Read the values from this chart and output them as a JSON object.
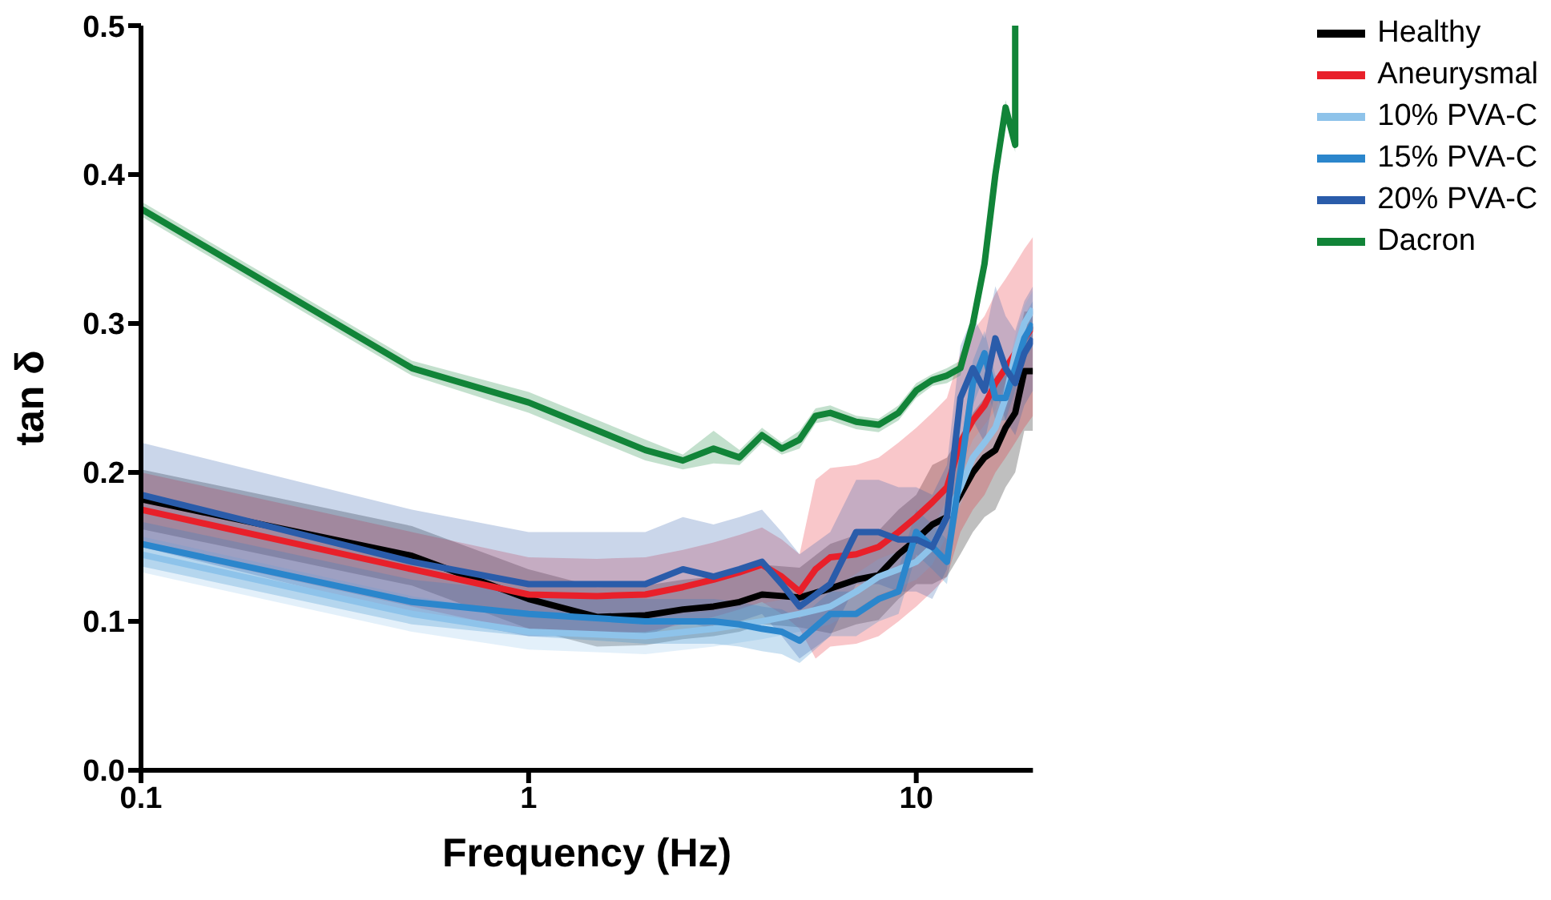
{
  "chart_data": {
    "type": "line",
    "xlabel": "Frequency (Hz)",
    "ylabel": "tan δ",
    "log": "x",
    "xlim": [
      0.1,
      20
    ],
    "xticks": [
      0.1,
      1,
      10
    ],
    "ylim": [
      0,
      0.5
    ],
    "yticks": [
      {
        "value": 0,
        "label": "0.0"
      },
      0.1,
      0.2,
      0.3,
      0.4,
      0.5
    ],
    "legend": "top right",
    "marker": "none",
    "series": [
      {
        "name": "Healthy",
        "color": "#000000",
        "x": [
          0.1,
          0.5,
          1,
          1.5,
          2,
          2.5,
          3,
          3.5,
          4,
          4.5,
          5,
          6,
          7,
          8,
          9,
          10,
          11,
          12,
          13,
          14,
          15,
          16,
          17,
          18,
          19,
          20
        ],
        "values": [
          0.182,
          0.144,
          0.115,
          0.103,
          0.104,
          0.108,
          0.11,
          0.113,
          0.118,
          0.117,
          0.116,
          0.122,
          0.128,
          0.131,
          0.145,
          0.155,
          0.165,
          0.17,
          0.185,
          0.2,
          0.21,
          0.215,
          0.23,
          0.24,
          0.268,
          0.268
        ],
        "lower": [
          0.162,
          0.124,
          0.095,
          0.083,
          0.084,
          0.088,
          0.09,
          0.093,
          0.098,
          0.097,
          0.096,
          0.092,
          0.098,
          0.101,
          0.115,
          0.125,
          0.125,
          0.13,
          0.145,
          0.16,
          0.17,
          0.175,
          0.19,
          0.2,
          0.228,
          0.228
        ],
        "upper": [
          0.202,
          0.164,
          0.135,
          0.123,
          0.124,
          0.128,
          0.13,
          0.133,
          0.138,
          0.137,
          0.136,
          0.152,
          0.158,
          0.161,
          0.175,
          0.185,
          0.205,
          0.21,
          0.225,
          0.24,
          0.25,
          0.255,
          0.27,
          0.28,
          0.308,
          0.308
        ]
      },
      {
        "name": "Aneurysmal",
        "color": "#e8202a",
        "x": [
          0.1,
          0.5,
          1,
          1.5,
          2,
          2.5,
          3,
          3.5,
          4,
          4.5,
          5,
          5.5,
          6,
          7,
          8,
          9,
          10,
          11,
          12,
          13,
          14,
          15,
          16,
          17,
          18,
          19,
          20
        ],
        "values": [
          0.175,
          0.135,
          0.118,
          0.117,
          0.118,
          0.123,
          0.128,
          0.133,
          0.138,
          0.13,
          0.12,
          0.135,
          0.143,
          0.145,
          0.15,
          0.16,
          0.17,
          0.18,
          0.19,
          0.22,
          0.235,
          0.245,
          0.26,
          0.27,
          0.28,
          0.29,
          0.298
        ],
        "lower": [
          0.15,
          0.11,
          0.093,
          0.092,
          0.093,
          0.098,
          0.103,
          0.108,
          0.113,
          0.105,
          0.095,
          0.075,
          0.083,
          0.085,
          0.09,
          0.1,
          0.11,
          0.12,
          0.13,
          0.16,
          0.175,
          0.185,
          0.2,
          0.21,
          0.22,
          0.23,
          0.238
        ],
        "upper": [
          0.2,
          0.16,
          0.143,
          0.142,
          0.143,
          0.148,
          0.153,
          0.158,
          0.163,
          0.155,
          0.145,
          0.195,
          0.203,
          0.205,
          0.21,
          0.22,
          0.23,
          0.24,
          0.25,
          0.28,
          0.295,
          0.305,
          0.32,
          0.33,
          0.34,
          0.35,
          0.358
        ]
      },
      {
        "name": "10% PVA-C",
        "color": "#8ec3ea",
        "x": [
          0.1,
          0.5,
          1,
          2,
          3,
          4,
          5,
          6,
          7,
          8,
          9,
          10,
          11,
          12,
          13,
          14,
          15,
          16,
          17,
          18,
          19,
          20
        ],
        "values": [
          0.145,
          0.105,
          0.093,
          0.09,
          0.095,
          0.1,
          0.105,
          0.11,
          0.12,
          0.13,
          0.135,
          0.14,
          0.15,
          0.17,
          0.19,
          0.21,
          0.22,
          0.23,
          0.25,
          0.28,
          0.3,
          0.31
        ],
        "lower": [
          0.133,
          0.093,
          0.081,
          0.078,
          0.083,
          0.088,
          0.093,
          0.098,
          0.108,
          0.118,
          0.123,
          0.128,
          0.138,
          0.158,
          0.178,
          0.198,
          0.208,
          0.218,
          0.238,
          0.268,
          0.288,
          0.298
        ],
        "upper": [
          0.157,
          0.117,
          0.105,
          0.102,
          0.107,
          0.112,
          0.117,
          0.122,
          0.132,
          0.142,
          0.147,
          0.152,
          0.162,
          0.182,
          0.202,
          0.222,
          0.232,
          0.242,
          0.262,
          0.292,
          0.312,
          0.322
        ]
      },
      {
        "name": "15% PVA-C",
        "color": "#2b86cc",
        "x": [
          0.1,
          0.5,
          1,
          2,
          2.5,
          3,
          3.5,
          4,
          4.5,
          5,
          6,
          7,
          8,
          9,
          10,
          11,
          12,
          13,
          14,
          15,
          16,
          17,
          18,
          19,
          20
        ],
        "values": [
          0.152,
          0.113,
          0.105,
          0.1,
          0.1,
          0.1,
          0.098,
          0.095,
          0.093,
          0.087,
          0.105,
          0.105,
          0.115,
          0.12,
          0.16,
          0.15,
          0.14,
          0.2,
          0.26,
          0.28,
          0.25,
          0.25,
          0.27,
          0.29,
          0.3
        ],
        "lower": [
          0.137,
          0.098,
          0.09,
          0.085,
          0.085,
          0.085,
          0.083,
          0.08,
          0.078,
          0.072,
          0.09,
          0.09,
          0.1,
          0.105,
          0.145,
          0.135,
          0.125,
          0.185,
          0.245,
          0.265,
          0.235,
          0.235,
          0.255,
          0.275,
          0.285
        ],
        "upper": [
          0.167,
          0.128,
          0.12,
          0.115,
          0.115,
          0.115,
          0.113,
          0.11,
          0.108,
          0.102,
          0.12,
          0.12,
          0.13,
          0.135,
          0.175,
          0.165,
          0.155,
          0.215,
          0.275,
          0.295,
          0.265,
          0.265,
          0.285,
          0.305,
          0.315
        ]
      },
      {
        "name": "20% PVA-C",
        "color": "#2a5caa",
        "x": [
          0.1,
          0.5,
          1,
          2,
          2.5,
          3,
          3.5,
          4,
          4.5,
          5,
          6,
          7,
          8,
          9,
          10,
          11,
          12,
          13,
          14,
          15,
          16,
          17,
          18,
          19,
          20
        ],
        "values": [
          0.185,
          0.14,
          0.125,
          0.125,
          0.135,
          0.13,
          0.135,
          0.14,
          0.125,
          0.11,
          0.125,
          0.16,
          0.16,
          0.155,
          0.155,
          0.15,
          0.17,
          0.25,
          0.27,
          0.255,
          0.29,
          0.27,
          0.26,
          0.28,
          0.29
        ],
        "lower": [
          0.15,
          0.105,
          0.09,
          0.09,
          0.1,
          0.095,
          0.1,
          0.105,
          0.09,
          0.075,
          0.09,
          0.125,
          0.125,
          0.12,
          0.12,
          0.115,
          0.135,
          0.215,
          0.235,
          0.22,
          0.255,
          0.235,
          0.225,
          0.245,
          0.255
        ],
        "upper": [
          0.22,
          0.175,
          0.16,
          0.16,
          0.17,
          0.165,
          0.17,
          0.175,
          0.16,
          0.145,
          0.16,
          0.195,
          0.195,
          0.19,
          0.19,
          0.185,
          0.205,
          0.285,
          0.305,
          0.29,
          0.325,
          0.305,
          0.295,
          0.315,
          0.325
        ]
      },
      {
        "name": "Dacron",
        "color": "#118438",
        "x": [
          0.1,
          0.5,
          1,
          2,
          2.5,
          3,
          3.5,
          4,
          4.5,
          5,
          5.5,
          6,
          7,
          8,
          9,
          10,
          11,
          12,
          13,
          14,
          15,
          16,
          17,
          18,
          18
        ],
        "values": [
          0.377,
          0.27,
          0.247,
          0.215,
          0.208,
          0.216,
          0.21,
          0.225,
          0.216,
          0.222,
          0.238,
          0.24,
          0.234,
          0.232,
          0.24,
          0.255,
          0.262,
          0.265,
          0.27,
          0.3,
          0.34,
          0.4,
          0.445,
          0.42,
          0.5
        ],
        "lower": [
          0.372,
          0.265,
          0.24,
          0.208,
          0.202,
          0.206,
          0.205,
          0.22,
          0.212,
          0.216,
          0.233,
          0.235,
          0.229,
          0.227,
          0.235,
          0.25,
          0.258,
          0.26,
          0.265,
          0.295,
          0.335,
          0.395,
          0.44,
          0.415,
          0.5
        ],
        "upper": [
          0.382,
          0.275,
          0.254,
          0.222,
          0.212,
          0.228,
          0.215,
          0.23,
          0.22,
          0.228,
          0.243,
          0.245,
          0.238,
          0.236,
          0.245,
          0.26,
          0.266,
          0.27,
          0.275,
          0.305,
          0.345,
          0.405,
          0.45,
          0.425,
          0.5
        ]
      }
    ]
  }
}
